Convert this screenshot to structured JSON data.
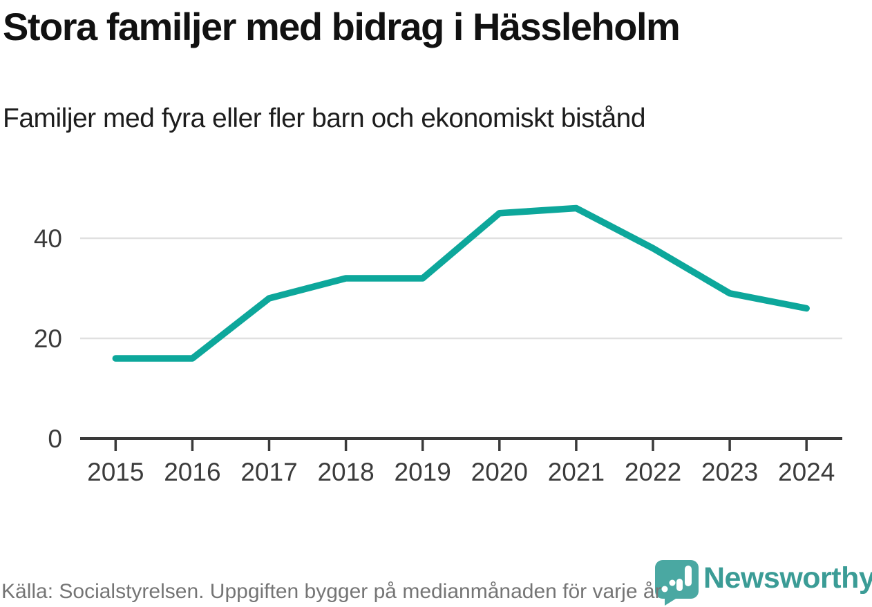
{
  "header": {
    "title": "Stora familjer med bidrag i Hässleholm",
    "subtitle": "Familjer med fyra eller fler barn och ekonomiskt bistånd"
  },
  "chart_data": {
    "type": "line",
    "title": "Stora familjer med bidrag i Hässleholm",
    "subtitle": "Familjer med fyra eller fler barn och ekonomiskt bistånd",
    "x": [
      "2015",
      "2016",
      "2017",
      "2018",
      "2019",
      "2020",
      "2021",
      "2022",
      "2023",
      "2024"
    ],
    "values": [
      16,
      16,
      28,
      32,
      32,
      45,
      46,
      38,
      29,
      26
    ],
    "xlabel": "",
    "ylabel": "",
    "yticks": [
      0,
      20,
      40
    ],
    "ylim": [
      0,
      50
    ],
    "grid": "horizontal",
    "legend": "none",
    "line_color": "#0da79b"
  },
  "footer": {
    "source": "Källa: Socialstyrelsen. Uppgiften bygger på medianmånaden för varje år",
    "logo": {
      "wordmark": "Newsworthy",
      "badge_color": "#4aa8a2",
      "wordmark_color": "#3b9c96"
    }
  },
  "colors": {
    "line": "#0da79b",
    "gridline": "#e0e0e0",
    "axis_line": "#3a3a3a",
    "axis_text": "#3b3b3b",
    "title_text": "#111111",
    "footer_text": "#757575",
    "background": "#ffffff"
  }
}
